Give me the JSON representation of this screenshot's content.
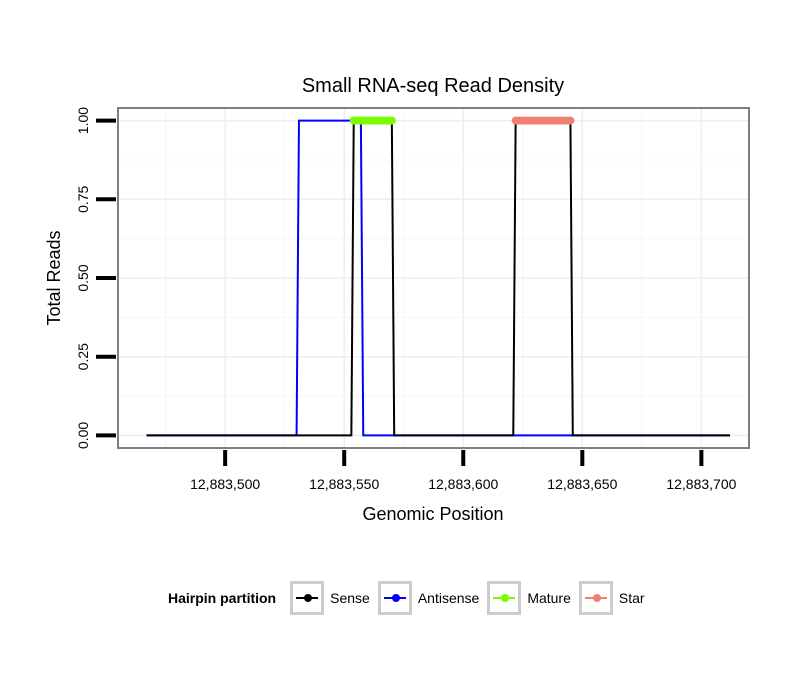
{
  "chart_data": {
    "type": "line",
    "title": "Small RNA-seq Read Density",
    "xlabel": "Genomic Position",
    "ylabel": "Total Reads",
    "xlim": [
      12883455,
      12883720
    ],
    "ylim": [
      -0.04,
      1.04
    ],
    "x_ticks": [
      12883500,
      12883550,
      12883600,
      12883650,
      12883700
    ],
    "x_tick_labels": [
      "12,883,500",
      "12,883,550",
      "12,883,600",
      "12,883,650",
      "12,883,700"
    ],
    "y_ticks": [
      0,
      0.25,
      0.5,
      0.75,
      1.0
    ],
    "y_tick_labels": [
      "0.00",
      "0.25",
      "0.50",
      "0.75",
      "1.00"
    ],
    "grid": true,
    "legend_position": "bottom",
    "series": [
      {
        "name": "Sense",
        "color": "#000000",
        "x": [
          12883467,
          12883553,
          12883554,
          12883570,
          12883571,
          12883621,
          12883622,
          12883645,
          12883646,
          12883712
        ],
        "y": [
          0,
          0,
          1,
          1,
          0,
          0,
          1,
          1,
          0,
          0
        ]
      },
      {
        "name": "Antisense",
        "color": "#0000ff",
        "x": [
          12883467,
          12883530,
          12883531,
          12883557,
          12883558,
          12883621,
          12883622,
          12883645,
          12883646,
          12883712
        ],
        "y": [
          0,
          0,
          1,
          1,
          0,
          0,
          0,
          0,
          0,
          0
        ]
      },
      {
        "name": "Mature",
        "color": "#7cfc00",
        "x": [
          12883554,
          12883570
        ],
        "y": [
          1,
          1
        ]
      },
      {
        "name": "Star",
        "color": "#f08070",
        "x": [
          12883622,
          12883645
        ],
        "y": [
          1,
          1
        ]
      }
    ]
  },
  "legend": {
    "title": "Hairpin partition",
    "items": [
      {
        "label": "Sense",
        "color": "#000000"
      },
      {
        "label": "Antisense",
        "color": "#0000ff"
      },
      {
        "label": "Mature",
        "color": "#7cfc00"
      },
      {
        "label": "Star",
        "color": "#f08070"
      }
    ]
  }
}
